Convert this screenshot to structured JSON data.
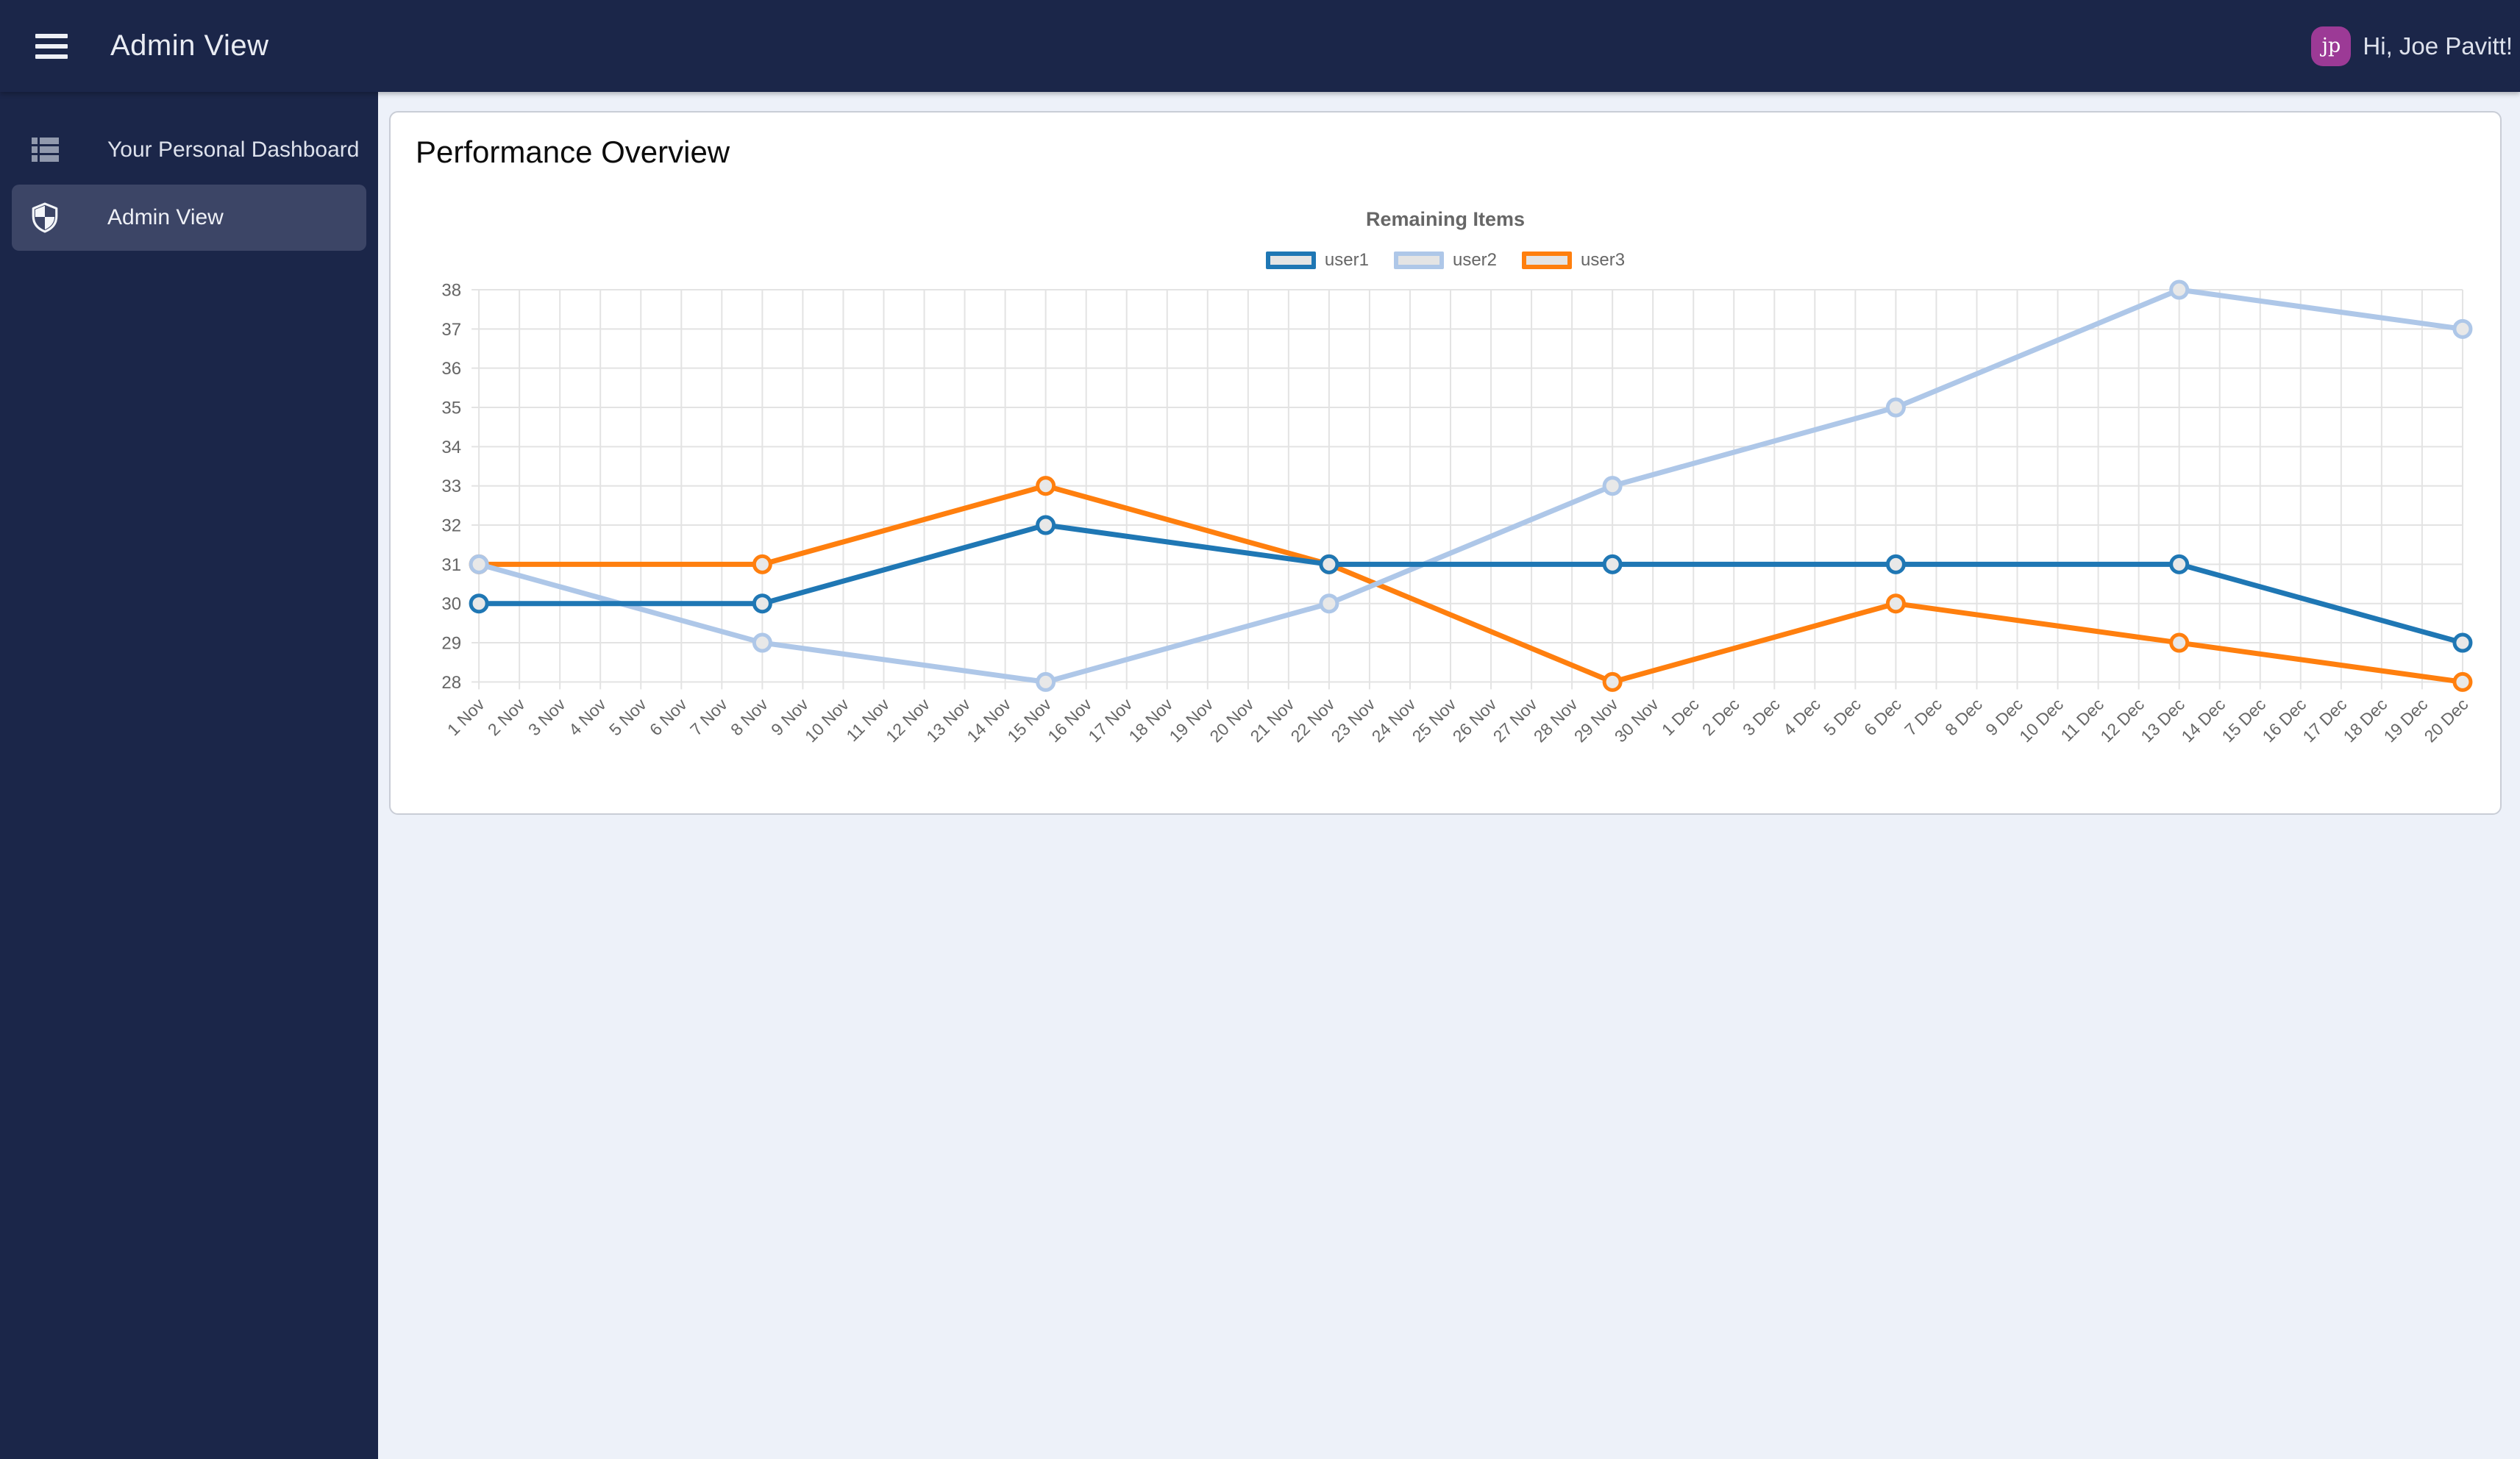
{
  "topbar": {
    "title": "Admin View",
    "greeting": "Hi, Joe Pavitt!",
    "avatar_initials": "jp",
    "avatar_color": "#9c3a96",
    "bar_color": "#1b2649"
  },
  "sidebar": {
    "items": [
      {
        "label": "Your Personal Dashboard",
        "icon": "list-icon",
        "active": false
      },
      {
        "label": "Admin View",
        "icon": "shield-icon",
        "active": true
      }
    ]
  },
  "main": {
    "card_title": "Performance Overview"
  },
  "chart_data": {
    "type": "line",
    "title": "Remaining Items",
    "legend_position": "top",
    "grid": true,
    "marker_fill": "#e8e8e8",
    "grid_color": "#e3e3e3",
    "ylim": [
      28,
      38
    ],
    "yticks": [
      28,
      29,
      30,
      31,
      32,
      33,
      34,
      35,
      36,
      37,
      38
    ],
    "x": [
      "1 Nov",
      "2 Nov",
      "3 Nov",
      "4 Nov",
      "5 Nov",
      "6 Nov",
      "7 Nov",
      "8 Nov",
      "9 Nov",
      "10 Nov",
      "11 Nov",
      "12 Nov",
      "13 Nov",
      "14 Nov",
      "15 Nov",
      "16 Nov",
      "17 Nov",
      "18 Nov",
      "19 Nov",
      "20 Nov",
      "21 Nov",
      "22 Nov",
      "23 Nov",
      "24 Nov",
      "25 Nov",
      "26 Nov",
      "27 Nov",
      "28 Nov",
      "29 Nov",
      "30 Nov",
      "1 Dec",
      "2 Dec",
      "3 Dec",
      "4 Dec",
      "5 Dec",
      "6 Dec",
      "7 Dec",
      "8 Dec",
      "9 Dec",
      "10 Dec",
      "11 Dec",
      "12 Dec",
      "13 Dec",
      "14 Dec",
      "15 Dec",
      "16 Dec",
      "17 Dec",
      "18 Dec",
      "19 Dec",
      "20 Dec"
    ],
    "point_x": [
      "1 Nov",
      "8 Nov",
      "15 Nov",
      "22 Nov",
      "29 Nov",
      "6 Dec",
      "13 Dec",
      "20 Dec"
    ],
    "series": [
      {
        "name": "user1",
        "color": "#1f77b4",
        "values": [
          30,
          30,
          32,
          31,
          31,
          31,
          31,
          29
        ]
      },
      {
        "name": "user2",
        "color": "#aec7e8",
        "values": [
          31,
          29,
          28,
          30,
          33,
          35,
          38,
          37
        ]
      },
      {
        "name": "user3",
        "color": "#ff7f0e",
        "values": [
          31,
          31,
          33,
          31,
          28,
          30,
          29,
          28
        ]
      }
    ]
  }
}
